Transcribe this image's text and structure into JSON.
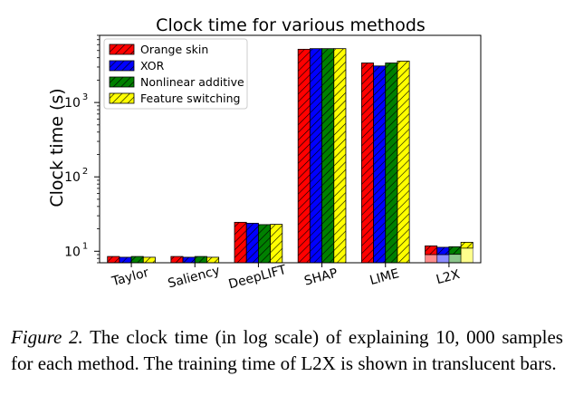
{
  "chart_data": {
    "type": "bar",
    "title": "Clock time for various methods",
    "xlabel": "",
    "ylabel": "Clock time (s)",
    "yscale": "log",
    "ylim": [
      7,
      8000
    ],
    "yticks": [
      {
        "value": 10,
        "base": "10",
        "exp": "1"
      },
      {
        "value": 100,
        "base": "10",
        "exp": "2"
      },
      {
        "value": 1000,
        "base": "10",
        "exp": "3"
      }
    ],
    "categories": [
      "Taylor",
      "Saliency",
      "DeepLIFT",
      "SHAP",
      "LIME",
      "L2X"
    ],
    "series": [
      {
        "name": "Orange skin",
        "color": "#ff0000",
        "values": [
          8.5,
          8.5,
          24.5,
          5200,
          3400,
          11.8
        ]
      },
      {
        "name": "XOR",
        "color": "#0000ff",
        "values": [
          8.3,
          8.3,
          23.8,
          5300,
          3100,
          11.3
        ]
      },
      {
        "name": "Nonlinear additive",
        "color": "#008000",
        "values": [
          8.5,
          8.5,
          22.8,
          5300,
          3400,
          11.5
        ]
      },
      {
        "name": "Feature switching",
        "color": "#ffff00",
        "values": [
          8.3,
          8.3,
          23.0,
          5300,
          3600,
          13.2
        ]
      }
    ],
    "training_time_values": [
      9.0,
      9.0,
      9.1,
      11.0
    ],
    "legend_position": "top-left",
    "grid": false
  },
  "caption": {
    "label": "Figure 2.",
    "text": "The clock time (in log scale) of explaining 10, 000 samples for each method.  The training time of L2X is shown in translucent bars."
  }
}
